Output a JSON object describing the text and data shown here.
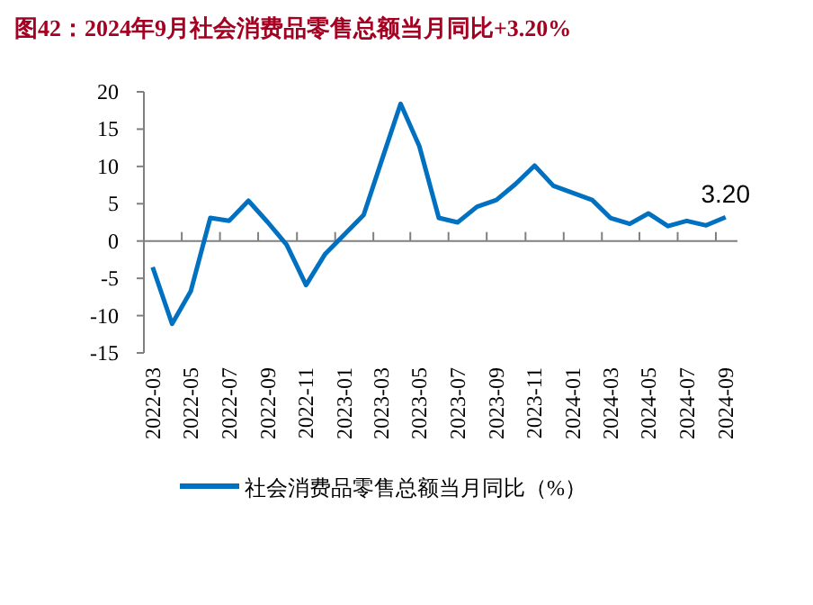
{
  "chart_data": {
    "type": "line",
    "title": "图42：2024年9月社会消费品零售总额当月同比+3.20%",
    "x": [
      "2022-03",
      "2022-04",
      "2022-05",
      "2022-06",
      "2022-07",
      "2022-08",
      "2022-09",
      "2022-10",
      "2022-11",
      "2022-12",
      "2023-02",
      "2023-03",
      "2023-04",
      "2023-05",
      "2023-06",
      "2023-07",
      "2023-08",
      "2023-09",
      "2023-10",
      "2023-11",
      "2023-12",
      "2024-02",
      "2024-03",
      "2024-04",
      "2024-05",
      "2024-06",
      "2024-07",
      "2024-08",
      "2024-09"
    ],
    "series": [
      {
        "name": "社会消费品零售总额当月同比（%）",
        "color": "#0070c0",
        "values": [
          -3.5,
          -11.1,
          -6.7,
          3.1,
          2.7,
          5.4,
          2.5,
          -0.5,
          -5.9,
          -1.8,
          3.5,
          10.6,
          18.4,
          12.7,
          3.1,
          2.5,
          4.6,
          5.5,
          7.6,
          10.1,
          7.4,
          5.5,
          3.1,
          2.3,
          3.7,
          2.0,
          2.7,
          2.1,
          3.2
        ]
      }
    ],
    "xlim": [
      "2022-02-15",
      "2024-09-20"
    ],
    "xticks": [
      {
        "value": "2022-03",
        "label": "2022-03"
      },
      {
        "value": "2022-05",
        "label": "2022-05"
      },
      {
        "value": "2022-07",
        "label": "2022-07"
      },
      {
        "value": "2022-09",
        "label": "2022-09"
      },
      {
        "value": "2022-11",
        "label": "2022-11"
      },
      {
        "value": "2023-01",
        "label": "2023-01"
      },
      {
        "value": "2023-03",
        "label": "2023-03"
      },
      {
        "value": "2023-05",
        "label": "2023-05"
      },
      {
        "value": "2023-07",
        "label": "2023-07"
      },
      {
        "value": "2023-09",
        "label": "2023-09"
      },
      {
        "value": "2023-11",
        "label": "2023-11"
      },
      {
        "value": "2024-01",
        "label": "2024-01"
      },
      {
        "value": "2024-03",
        "label": "2024-03"
      },
      {
        "value": "2024-05",
        "label": "2024-05"
      },
      {
        "value": "2024-07",
        "label": "2024-07"
      },
      {
        "value": "2024-09",
        "label": "2024-09"
      }
    ],
    "ylim": [
      -15,
      20
    ],
    "yticks": [
      -15,
      -10,
      -5,
      0,
      5,
      10,
      15,
      20
    ],
    "annotations": [
      {
        "text": "3.20",
        "x": "2024-09",
        "y": 3.2
      }
    ],
    "legend": "bottom",
    "marker": "none",
    "line_style": "solid"
  }
}
